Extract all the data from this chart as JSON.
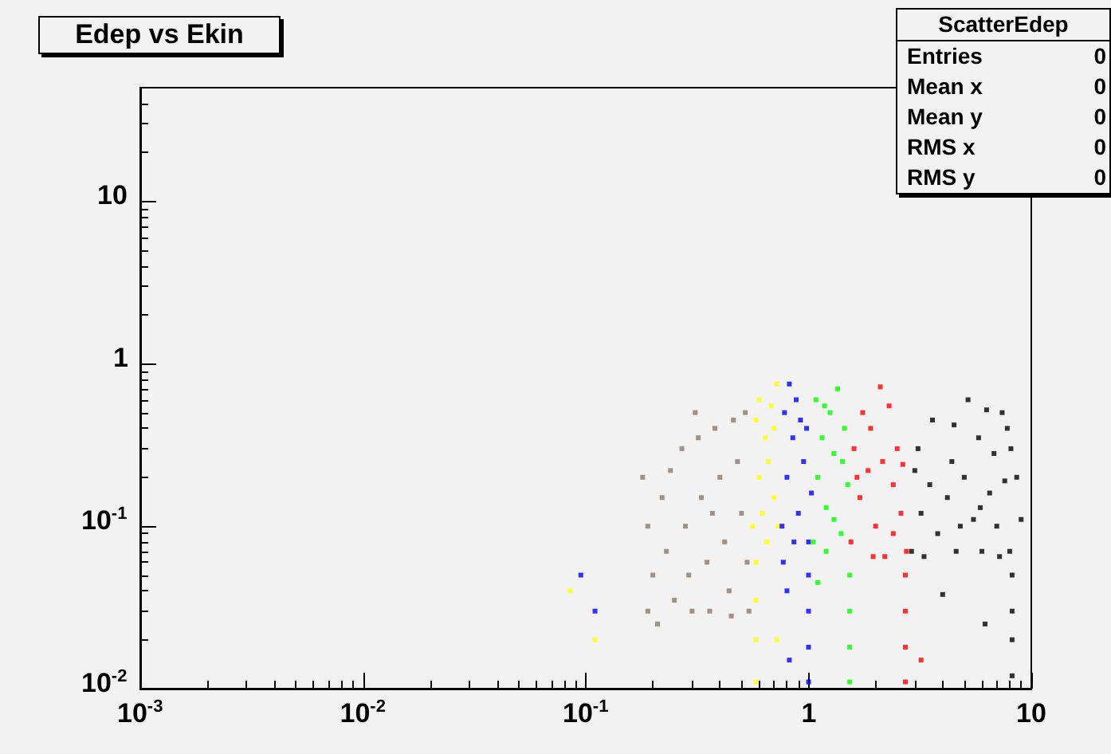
{
  "chart_data": {
    "type": "scatter",
    "title": "Edep vs Ekin",
    "annotations": [
      "ScatterEdep",
      "Entries 0",
      "Mean x 0",
      "Mean y 0",
      "RMS x 0",
      "RMS y 0"
    ],
    "log": "xy",
    "grid": false,
    "marker": "square",
    "xlim": [
      0.001,
      10
    ],
    "ylim": [
      0.01,
      50
    ],
    "xticks": [
      {
        "value": 0.001,
        "label": "10$^{-3}$"
      },
      {
        "value": 0.01,
        "label": "10$^{-2}$"
      },
      {
        "value": 0.1,
        "label": "10$^{-1}$"
      },
      1,
      10
    ],
    "yticks": [
      {
        "value": 0.01,
        "label": "10$^{-2}$"
      },
      {
        "value": 0.1,
        "label": "10$^{-1}$"
      },
      1,
      10
    ],
    "series": [
      {
        "color": "#8a7868",
        "x": [
          0.18,
          0.19,
          0.2,
          0.21,
          0.22,
          0.23,
          0.24,
          0.25,
          0.19,
          0.27,
          0.28,
          0.29,
          0.3,
          0.32,
          0.33,
          0.35,
          0.36,
          0.38,
          0.4,
          0.42,
          0.44,
          0.46,
          0.48,
          0.5,
          0.52,
          0.53,
          0.54,
          0.45,
          0.31,
          0.37
        ],
        "values": [
          0.2,
          0.1,
          0.05,
          0.025,
          0.15,
          0.07,
          0.22,
          0.035,
          0.03,
          0.3,
          0.1,
          0.05,
          0.03,
          0.35,
          0.15,
          0.06,
          0.03,
          0.4,
          0.2,
          0.08,
          0.04,
          0.45,
          0.25,
          0.12,
          0.5,
          0.06,
          0.03,
          0.028,
          0.5,
          0.12
        ]
      },
      {
        "color": "#ffff00",
        "x": [
          0.56,
          0.6,
          0.64,
          0.68,
          0.72,
          0.58,
          0.62,
          0.66,
          0.7,
          0.73,
          0.58,
          0.58,
          0.58,
          0.58,
          0.6,
          0.65,
          0.7,
          0.085,
          0.11,
          0.72
        ],
        "values": [
          0.1,
          0.2,
          0.35,
          0.55,
          0.75,
          0.45,
          0.12,
          0.25,
          0.15,
          0.1,
          0.06,
          0.035,
          0.02,
          0.011,
          0.6,
          0.08,
          0.4,
          0.04,
          0.02,
          0.02
        ]
      },
      {
        "color": "#0000ff",
        "x": [
          0.76,
          0.8,
          0.85,
          0.9,
          0.95,
          1.0,
          1.03,
          0.78,
          0.82,
          0.88,
          0.92,
          0.98,
          1.0,
          1.0,
          1.0,
          1.0,
          0.8,
          0.82,
          0.77,
          0.86,
          0.095,
          0.11
        ],
        "values": [
          0.1,
          0.2,
          0.35,
          0.12,
          0.25,
          0.08,
          0.16,
          0.5,
          0.75,
          0.6,
          0.45,
          0.4,
          0.05,
          0.03,
          0.018,
          0.011,
          0.04,
          0.015,
          0.06,
          0.08,
          0.05,
          0.03
        ]
      },
      {
        "color": "#00ff00",
        "x": [
          1.05,
          1.1,
          1.2,
          1.3,
          1.4,
          1.5,
          1.15,
          1.25,
          1.45,
          1.35,
          1.53,
          1.53,
          1.53,
          1.53,
          1.1,
          1.2,
          1.42,
          1.08,
          1.3,
          1.18
        ],
        "values": [
          0.08,
          0.2,
          0.13,
          0.28,
          0.09,
          0.18,
          0.35,
          0.5,
          0.4,
          0.7,
          0.05,
          0.03,
          0.018,
          0.011,
          0.045,
          0.07,
          0.25,
          0.6,
          0.11,
          0.55
        ]
      },
      {
        "color": "#ff0000",
        "x": [
          1.55,
          1.7,
          1.85,
          2.0,
          2.2,
          2.4,
          2.6,
          2.75,
          1.6,
          1.9,
          2.3,
          2.5,
          2.1,
          1.75,
          2.72,
          2.72,
          2.72,
          2.72,
          1.65,
          2.15,
          2.65,
          1.95,
          3.2,
          2.4
        ],
        "values": [
          0.08,
          0.15,
          0.22,
          0.1,
          0.065,
          0.18,
          0.12,
          0.07,
          0.3,
          0.4,
          0.55,
          0.3,
          0.72,
          0.5,
          0.05,
          0.03,
          0.018,
          0.011,
          0.2,
          0.25,
          0.24,
          0.065,
          0.015,
          0.09
        ]
      },
      {
        "color": "#000000",
        "x": [
          2.9,
          3.2,
          3.5,
          3.8,
          4.2,
          4.6,
          5,
          5.5,
          6,
          6.5,
          7,
          7.6,
          8,
          3.1,
          3.6,
          4.4,
          5.2,
          5.8,
          6.8,
          7.4,
          8.1,
          3.3,
          4.8,
          5.9,
          7.2,
          8.2,
          8.2,
          8.2,
          8.2,
          8.6,
          9,
          4,
          6.2,
          3.0,
          4.5,
          6.3,
          7.8
        ],
        "values": [
          0.07,
          0.12,
          0.18,
          0.09,
          0.15,
          0.07,
          0.2,
          0.11,
          0.07,
          0.16,
          0.1,
          0.19,
          0.07,
          0.3,
          0.45,
          0.25,
          0.6,
          0.35,
          0.28,
          0.5,
          0.3,
          0.065,
          0.1,
          0.13,
          0.065,
          0.05,
          0.03,
          0.02,
          0.012,
          0.2,
          0.11,
          0.038,
          0.025,
          0.22,
          0.42,
          0.52,
          0.4
        ]
      }
    ]
  }
}
